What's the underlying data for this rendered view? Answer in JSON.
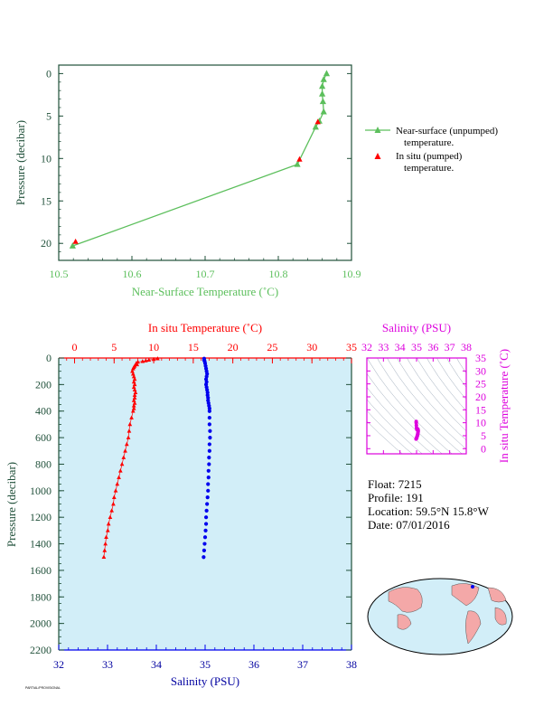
{
  "colors": {
    "green": "#5cbf5c",
    "red": "#ff0000",
    "blue": "#0000ee",
    "magenta": "#dd00dd",
    "plot_bg": "#d2eef8",
    "axis_dark": "#20503a",
    "navy": "#0000a0"
  },
  "info": {
    "float": "Float:  7215",
    "profile": "Profile:  191",
    "location": "Location:  59.5°N  15.8°W",
    "date": "Date:  07/01/2016"
  },
  "footer_text": "PARTIAL/PROVISIONAL",
  "chart_data": [
    {
      "type": "line",
      "xlabel": "Near-Surface Temperature (˚C)",
      "ylabel": "Pressure (decibar)",
      "xlim": [
        10.5,
        10.9
      ],
      "ylim": [
        22,
        -1
      ],
      "xticks": [
        "10.5",
        "10.6",
        "10.7",
        "10.8",
        "10.9"
      ],
      "yticks": [
        "0",
        "5",
        "10",
        "15",
        "20"
      ],
      "legend": [
        "Near-surface (unpumped)",
        "temperature.",
        "In situ (pumped)",
        "temperature."
      ],
      "legend_position": "right",
      "series": [
        {
          "name": "Near-surface (unpumped) temperature.",
          "marker": "triangle",
          "points": [
            [
              10.866,
              0.0
            ],
            [
              10.862,
              0.7
            ],
            [
              10.86,
              1.5
            ],
            [
              10.86,
              2.4
            ],
            [
              10.861,
              3.3
            ],
            [
              10.862,
              4.5
            ],
            [
              10.856,
              5.6
            ],
            [
              10.851,
              6.3
            ],
            [
              10.826,
              10.7
            ],
            [
              10.519,
              20.3
            ]
          ]
        },
        {
          "name": "In situ (pumped) temperature.",
          "marker": "triangle",
          "points": [
            [
              10.854,
              5.7
            ],
            [
              10.829,
              10.1
            ],
            [
              10.523,
              19.8
            ]
          ]
        }
      ]
    },
    {
      "type": "scatter",
      "ylabel": "Pressure (decibar)",
      "ylim": [
        2200,
        0
      ],
      "yticks": [
        "0",
        "200",
        "400",
        "600",
        "800",
        "1000",
        "1200",
        "1400",
        "1600",
        "1800",
        "2000",
        "2200"
      ],
      "x_top": {
        "label": "In situ Temperature (˚C)",
        "lim": [
          -2,
          35
        ],
        "ticks": [
          "0",
          "5",
          "10",
          "15",
          "20",
          "25",
          "30",
          "35"
        ]
      },
      "x_bottom": {
        "label": "Salinity (PSU)",
        "lim": [
          32,
          38
        ],
        "ticks": [
          "32",
          "33",
          "34",
          "35",
          "36",
          "37",
          "38"
        ]
      },
      "series": [
        {
          "name": "In situ Temperature (˚C)",
          "marker": "triangle",
          "points": [
            [
              10.5,
              5
            ],
            [
              10.0,
              10
            ],
            [
              9.4,
              15
            ],
            [
              9.0,
              20
            ],
            [
              8.6,
              25
            ],
            [
              8.0,
              30
            ],
            [
              7.8,
              40
            ],
            [
              7.9,
              50
            ],
            [
              7.6,
              60
            ],
            [
              7.5,
              70
            ],
            [
              7.4,
              80
            ],
            [
              7.3,
              100
            ],
            [
              7.4,
              120
            ],
            [
              7.5,
              140
            ],
            [
              7.6,
              160
            ],
            [
              7.5,
              180
            ],
            [
              7.6,
              200
            ],
            [
              7.5,
              220
            ],
            [
              7.6,
              240
            ],
            [
              7.7,
              260
            ],
            [
              7.6,
              280
            ],
            [
              7.6,
              300
            ],
            [
              7.5,
              320
            ],
            [
              7.6,
              340
            ],
            [
              7.5,
              360
            ],
            [
              7.5,
              380
            ],
            [
              7.4,
              400
            ],
            [
              7.2,
              450
            ],
            [
              7.0,
              500
            ],
            [
              6.9,
              550
            ],
            [
              6.8,
              600
            ],
            [
              6.6,
              650
            ],
            [
              6.4,
              700
            ],
            [
              6.2,
              750
            ],
            [
              6.0,
              800
            ],
            [
              5.8,
              850
            ],
            [
              5.6,
              900
            ],
            [
              5.4,
              950
            ],
            [
              5.2,
              1000
            ],
            [
              5.0,
              1050
            ],
            [
              4.9,
              1100
            ],
            [
              4.7,
              1150
            ],
            [
              4.5,
              1200
            ],
            [
              4.3,
              1250
            ],
            [
              4.2,
              1300
            ],
            [
              4.0,
              1350
            ],
            [
              3.9,
              1400
            ],
            [
              3.8,
              1450
            ],
            [
              3.7,
              1500
            ]
          ]
        },
        {
          "name": "Salinity (PSU)",
          "marker": "circle",
          "points": [
            [
              34.98,
              5
            ],
            [
              34.98,
              15
            ],
            [
              34.99,
              25
            ],
            [
              35.0,
              40
            ],
            [
              35.01,
              60
            ],
            [
              35.02,
              80
            ],
            [
              35.03,
              100
            ],
            [
              35.04,
              120
            ],
            [
              35.03,
              140
            ],
            [
              35.02,
              160
            ],
            [
              35.03,
              180
            ],
            [
              35.02,
              200
            ],
            [
              35.03,
              220
            ],
            [
              35.04,
              240
            ],
            [
              35.05,
              260
            ],
            [
              35.05,
              280
            ],
            [
              35.06,
              300
            ],
            [
              35.06,
              320
            ],
            [
              35.07,
              340
            ],
            [
              35.08,
              360
            ],
            [
              35.09,
              380
            ],
            [
              35.09,
              400
            ],
            [
              35.09,
              450
            ],
            [
              35.09,
              500
            ],
            [
              35.1,
              550
            ],
            [
              35.1,
              600
            ],
            [
              35.09,
              650
            ],
            [
              35.09,
              700
            ],
            [
              35.08,
              750
            ],
            [
              35.08,
              800
            ],
            [
              35.07,
              850
            ],
            [
              35.07,
              900
            ],
            [
              35.06,
              950
            ],
            [
              35.06,
              1000
            ],
            [
              35.05,
              1050
            ],
            [
              35.04,
              1100
            ],
            [
              35.03,
              1150
            ],
            [
              35.02,
              1200
            ],
            [
              35.02,
              1250
            ],
            [
              35.01,
              1300
            ],
            [
              35.0,
              1350
            ],
            [
              34.99,
              1400
            ],
            [
              34.98,
              1450
            ],
            [
              34.97,
              1500
            ]
          ]
        }
      ]
    },
    {
      "type": "scatter",
      "xlabel": "Salinity (PSU)",
      "ylabel": "In situ Temperature (˚C)",
      "xlim": [
        32,
        38
      ],
      "ylim": [
        -2,
        35
      ],
      "xticks": [
        "32",
        "33",
        "34",
        "35",
        "36",
        "37",
        "38"
      ],
      "yticks": [
        "0",
        "5",
        "10",
        "15",
        "20",
        "25",
        "30",
        "35"
      ],
      "points": [
        [
          34.97,
          3.7
        ],
        [
          34.99,
          3.9
        ],
        [
          35.01,
          4.2
        ],
        [
          35.02,
          4.5
        ],
        [
          35.04,
          4.9
        ],
        [
          35.06,
          5.2
        ],
        [
          35.07,
          5.6
        ],
        [
          35.08,
          6.0
        ],
        [
          35.09,
          6.4
        ],
        [
          35.1,
          6.8
        ],
        [
          35.09,
          7.2
        ],
        [
          35.08,
          7.5
        ],
        [
          35.06,
          7.6
        ],
        [
          35.03,
          7.6
        ],
        [
          35.02,
          7.4
        ],
        [
          35.0,
          8.0
        ],
        [
          34.99,
          9.0
        ],
        [
          34.98,
          10.0
        ],
        [
          34.98,
          10.5
        ]
      ]
    }
  ]
}
